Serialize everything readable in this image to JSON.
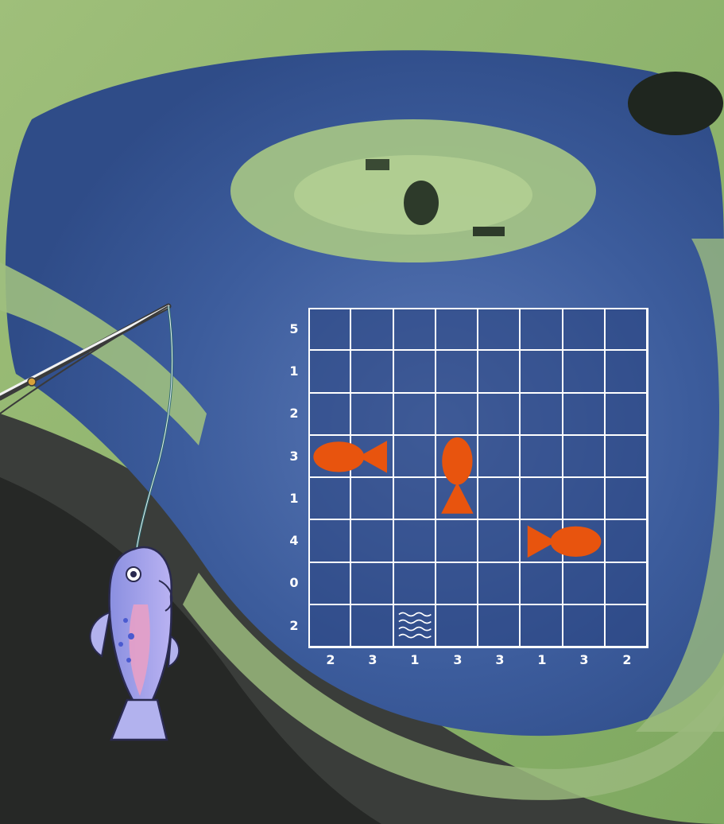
{
  "game": {
    "type": "fishing-battleship-puzzle",
    "grid_size": [
      8,
      8
    ],
    "row_clues": [
      "5",
      "1",
      "2",
      "3",
      "1",
      "4",
      "0",
      "2"
    ],
    "column_clues": [
      "2",
      "3",
      "1",
      "3",
      "3",
      "1",
      "3",
      "2"
    ],
    "fish": [
      {
        "name": "fish-horizontal-left",
        "row": 3,
        "col": 0,
        "length": 2,
        "orientation": "horizontal",
        "head": "left"
      },
      {
        "name": "fish-vertical",
        "row": 3,
        "col": 3,
        "length": 2,
        "orientation": "vertical",
        "head": "up"
      },
      {
        "name": "fish-horizontal-right",
        "row": 5,
        "col": 5,
        "length": 2,
        "orientation": "horizontal",
        "head": "right"
      }
    ],
    "water_cells": [
      {
        "row": 7,
        "col": 2
      }
    ],
    "colors": {
      "fish": "#e8540e",
      "grid_line": "#ffffff",
      "clue_text": "#ffffff",
      "water_marker": "#ffffff"
    }
  }
}
